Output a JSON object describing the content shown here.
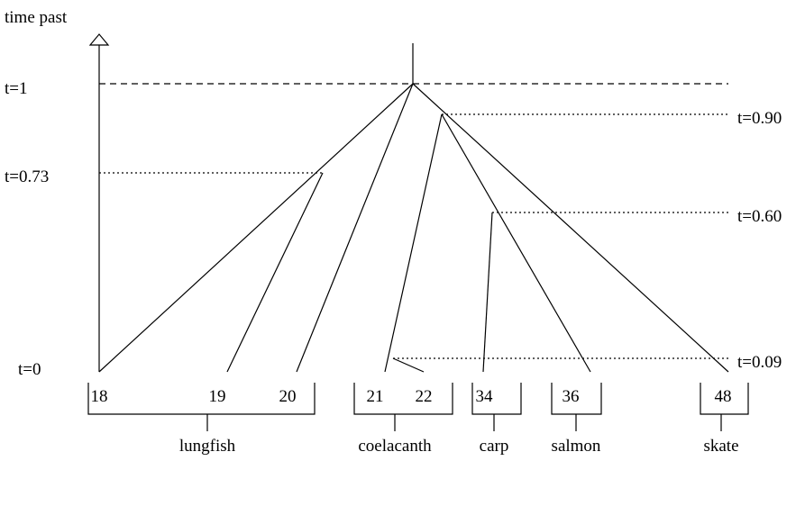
{
  "axis_label": "time past",
  "time_labels": [
    "t=1",
    "t=0.90",
    "t=0.73",
    "t=0.60",
    "t=0.09",
    "t=0"
  ],
  "leaves": [
    "18",
    "19",
    "20",
    "21",
    "22",
    "34",
    "36",
    "48"
  ],
  "groups": [
    "lungfish",
    "coelacanth",
    "carp",
    "salmon",
    "skate"
  ]
}
